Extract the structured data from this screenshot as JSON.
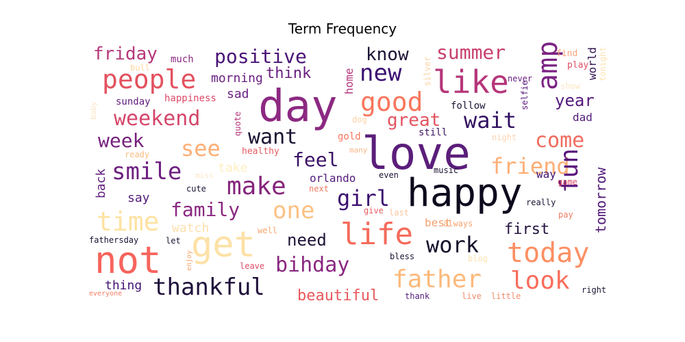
{
  "chart_data": {
    "type": "wordcloud",
    "title": "Term Frequency",
    "colormap": "magma",
    "words": [
      {
        "text": "love",
        "color": "#5b1e7a"
      },
      {
        "text": "day",
        "color": "#8c2981"
      },
      {
        "text": "happy",
        "color": "#0d0a1d"
      },
      {
        "text": "amp",
        "color": "#7b2382"
      },
      {
        "text": "not",
        "color": "#f7645d"
      },
      {
        "text": "get",
        "color": "#fde1a6"
      },
      {
        "text": "life",
        "color": "#f56b5c"
      },
      {
        "text": "like",
        "color": "#b5367a"
      },
      {
        "text": "new",
        "color": "#3b0f70"
      },
      {
        "text": "good",
        "color": "#f8765c"
      },
      {
        "text": "people",
        "color": "#e3515e"
      },
      {
        "text": "positive",
        "color": "#4a1377"
      },
      {
        "text": "make",
        "color": "#85257c"
      },
      {
        "text": "smile",
        "color": "#6d1f80"
      },
      {
        "text": "today",
        "color": "#fc8f63"
      },
      {
        "text": "father",
        "color": "#fcb97b"
      },
      {
        "text": "look",
        "color": "#f96d5c"
      },
      {
        "text": "time",
        "color": "#fee2a1"
      },
      {
        "text": "bihday",
        "color": "#8a2880"
      },
      {
        "text": "thankful",
        "color": "#1f0f3a"
      },
      {
        "text": "weekend",
        "color": "#d4466a"
      },
      {
        "text": "summer",
        "color": "#c8406f"
      },
      {
        "text": "want",
        "color": "#1a1232"
      },
      {
        "text": "see",
        "color": "#fdae76"
      },
      {
        "text": "wait",
        "color": "#311062"
      },
      {
        "text": "one",
        "color": "#fcc184"
      },
      {
        "text": "girl",
        "color": "#3c0f70"
      },
      {
        "text": "work",
        "color": "#14102a"
      },
      {
        "text": "friend",
        "color": "#fdae76"
      },
      {
        "text": "family",
        "color": "#8a2880"
      },
      {
        "text": "fun",
        "color": "#5a167c"
      },
      {
        "text": "come",
        "color": "#f06b5e"
      },
      {
        "text": "feel",
        "color": "#3a1166"
      },
      {
        "text": "great",
        "color": "#e4525f"
      },
      {
        "text": "week",
        "color": "#76207c"
      },
      {
        "text": "friday",
        "color": "#b6377a"
      },
      {
        "text": "know",
        "color": "#1d1233"
      },
      {
        "text": "year",
        "color": "#56197d"
      },
      {
        "text": "need",
        "color": "#1f1337"
      },
      {
        "text": "think",
        "color": "#6a1f80"
      },
      {
        "text": "beautiful",
        "color": "#e8585c"
      },
      {
        "text": "tomorrow",
        "color": "#521b79"
      },
      {
        "text": "first",
        "color": "#24123f"
      },
      {
        "text": "morning",
        "color": "#6a1f80"
      },
      {
        "text": "sad",
        "color": "#6a1f80"
      },
      {
        "text": "thing",
        "color": "#411372"
      },
      {
        "text": "orlando",
        "color": "#521b79"
      },
      {
        "text": "say",
        "color": "#521b79"
      },
      {
        "text": "back",
        "color": "#5f1c7d"
      },
      {
        "text": "home",
        "color": "#b4367a"
      },
      {
        "text": "world",
        "color": "#2d1150"
      },
      {
        "text": "best",
        "color": "#f6a16f"
      },
      {
        "text": "dad",
        "color": "#4f1b78"
      },
      {
        "text": "take",
        "color": "#feeec0"
      },
      {
        "text": "watch",
        "color": "#fde0ad"
      },
      {
        "text": "much",
        "color": "#8a2880"
      },
      {
        "text": "bull",
        "color": "#fcd6a0"
      },
      {
        "text": "sunday",
        "color": "#5f1c7d"
      },
      {
        "text": "happiness",
        "color": "#dc4a68"
      },
      {
        "text": "quote",
        "color": "#b4367a"
      },
      {
        "text": "dog",
        "color": "#fbd3a6"
      },
      {
        "text": "gold",
        "color": "#f8765c"
      },
      {
        "text": "still",
        "color": "#3c1560"
      },
      {
        "text": "follow",
        "color": "#1a1232"
      },
      {
        "text": "selfie",
        "color": "#5a167c"
      },
      {
        "text": "silver",
        "color": "#fcd3a3"
      },
      {
        "text": "never",
        "color": "#6a1f80"
      },
      {
        "text": "find",
        "color": "#f8a478"
      },
      {
        "text": "play",
        "color": "#de4d66"
      },
      {
        "text": "tonight",
        "color": "#fde3b2"
      },
      {
        "text": "show",
        "color": "#fce5c3"
      },
      {
        "text": "night",
        "color": "#fcd3b1"
      },
      {
        "text": "baby",
        "color": "#fde6c4"
      },
      {
        "text": "healthy",
        "color": "#e35a5f"
      },
      {
        "text": "ready",
        "color": "#fbbc80"
      },
      {
        "text": "many",
        "color": "#fbb78a"
      },
      {
        "text": "music",
        "color": "#1a1232"
      },
      {
        "text": "even",
        "color": "#1a1232"
      },
      {
        "text": "miss",
        "color": "#fde6c4"
      },
      {
        "text": "cute",
        "color": "#1a1232"
      },
      {
        "text": "next",
        "color": "#f17b63"
      },
      {
        "text": "game",
        "color": "#de4d66"
      },
      {
        "text": "way",
        "color": "#411372"
      },
      {
        "text": "really",
        "color": "#1a1232"
      },
      {
        "text": "give",
        "color": "#e35a5f"
      },
      {
        "text": "last",
        "color": "#fcc5a0"
      },
      {
        "text": "always",
        "color": "#fba26e"
      },
      {
        "text": "pay",
        "color": "#f17b63"
      },
      {
        "text": "fathersday",
        "color": "#1a1232"
      },
      {
        "text": "let",
        "color": "#1a1232"
      },
      {
        "text": "well",
        "color": "#f9a46a"
      },
      {
        "text": "enjoy",
        "color": "#f9a46a"
      },
      {
        "text": "leave",
        "color": "#de4d66"
      },
      {
        "text": "bless",
        "color": "#1a1232"
      },
      {
        "text": "blog",
        "color": "#fde3b2"
      },
      {
        "text": "everyone",
        "color": "#f17b63"
      },
      {
        "text": "thank",
        "color": "#521b79"
      },
      {
        "text": "live",
        "color": "#f08a6c"
      },
      {
        "text": "little",
        "color": "#f08a6c"
      },
      {
        "text": "right",
        "color": "#1a1232"
      }
    ]
  }
}
